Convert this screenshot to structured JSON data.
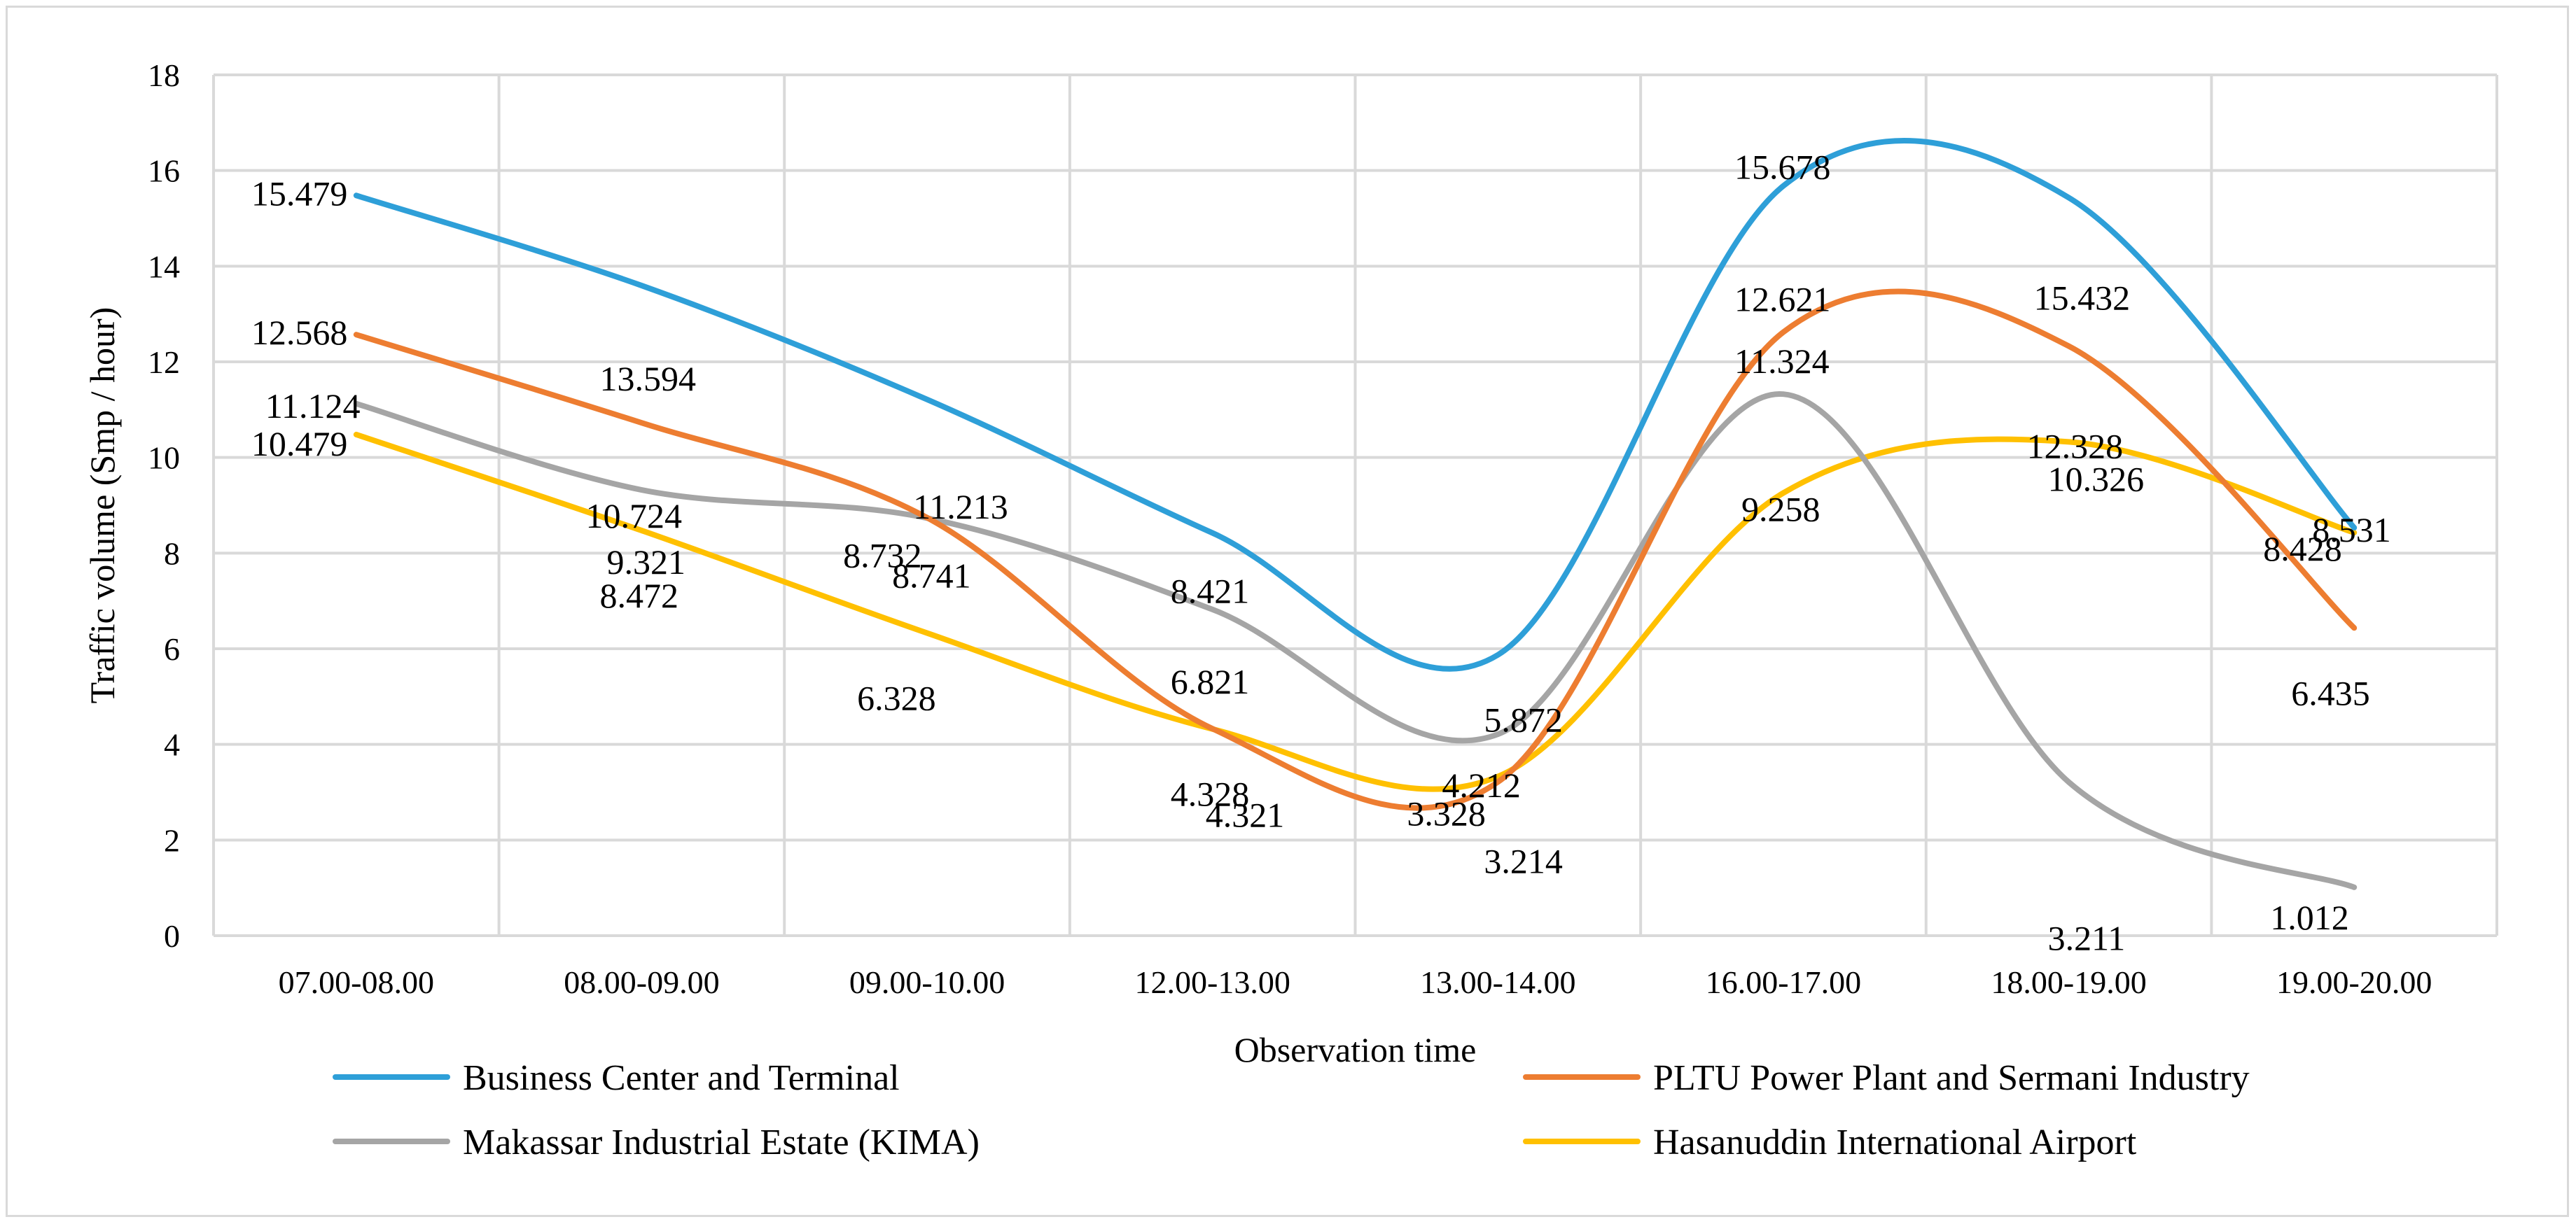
{
  "chart_data": {
    "type": "line",
    "title": "",
    "xlabel": "Observation time",
    "ylabel": "Traffic volume (Smp / hour)",
    "ylim": [
      0,
      18
    ],
    "yticks": [
      0,
      2,
      4,
      6,
      8,
      10,
      12,
      14,
      16,
      18
    ],
    "grid": true,
    "legend_position": "bottom",
    "categories": [
      "07.00-08.00",
      "08.00-09.00",
      "09.00-10.00",
      "12.00-13.00",
      "13.00-14.00",
      "16.00-17.00",
      "18.00-19.00",
      "19.00-20.00"
    ],
    "series": [
      {
        "name": "Business Center and Terminal",
        "color": "#2e9fd8",
        "values": [
          15.479,
          13.594,
          11.213,
          8.421,
          5.872,
          15.678,
          15.432,
          8.531
        ]
      },
      {
        "name": "PLTU Power Plant and Sermani Industry",
        "color": "#ed7d31",
        "values": [
          12.568,
          10.724,
          8.741,
          4.328,
          3.214,
          12.621,
          12.328,
          6.435
        ]
      },
      {
        "name": "Makassar Industrial Estate (KIMA)",
        "color": "#a5a5a5",
        "values": [
          11.124,
          9.321,
          8.732,
          6.821,
          4.212,
          11.324,
          3.211,
          1.012
        ]
      },
      {
        "name": "Hasanuddin International Airport",
        "color": "#ffc000",
        "values": [
          10.479,
          8.472,
          6.328,
          4.321,
          3.328,
          9.258,
          10.326,
          8.428
        ]
      }
    ]
  }
}
